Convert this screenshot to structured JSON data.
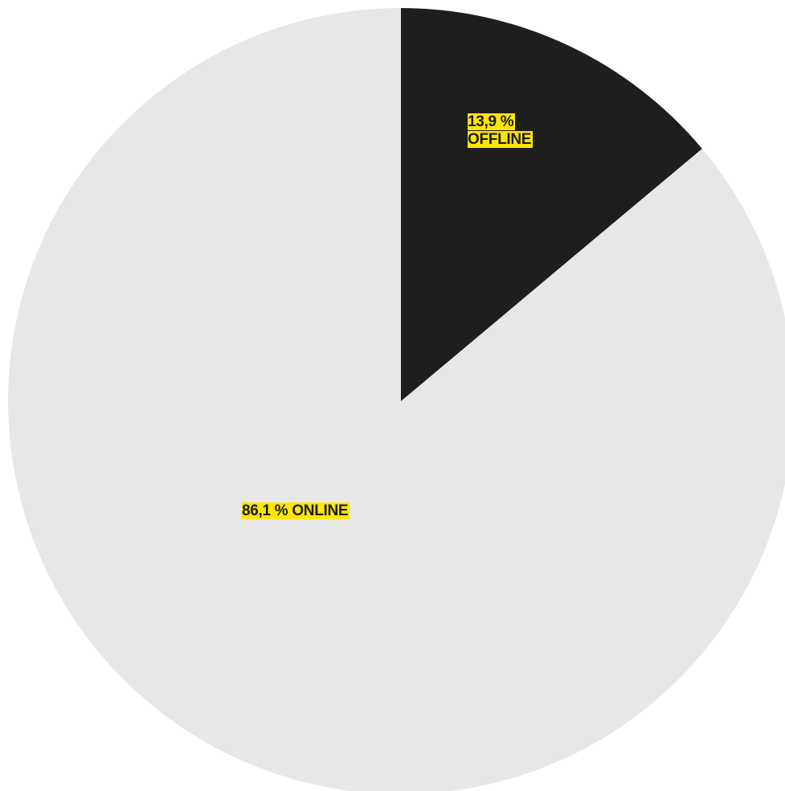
{
  "chart_data": {
    "type": "pie",
    "start_angle_deg": 0,
    "direction": "clockwise",
    "slices": [
      {
        "label": "OFFLINE",
        "value": 13.9,
        "display": "13,9 %",
        "color": "#1e1e1e"
      },
      {
        "label": "ONLINE",
        "value": 86.1,
        "display": "86,1 %",
        "color": "#e7e7e7"
      }
    ],
    "labels": {
      "offline_line1": "13,9 %",
      "offline_line2": "OFFLINE",
      "online": "86,1 % ONLINE"
    },
    "label_highlight_color": "#ffe500"
  }
}
